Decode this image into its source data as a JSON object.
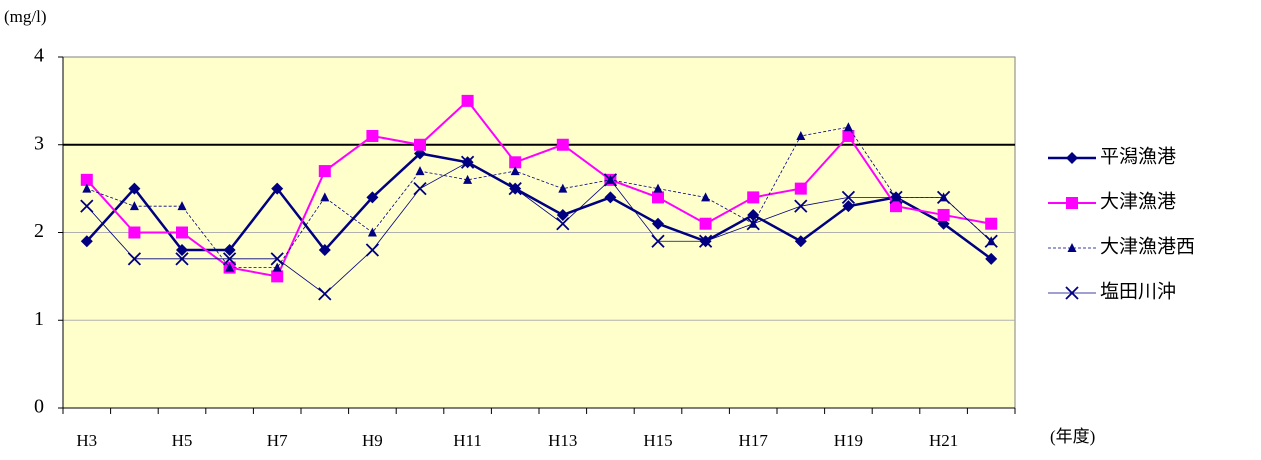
{
  "chart_data": {
    "type": "line",
    "y_label": "(mg/l)",
    "x_label": "(年度)",
    "categories": [
      "H3",
      null,
      "H5",
      null,
      "H7",
      null,
      "H9",
      null,
      "H11",
      null,
      "H13",
      null,
      "H15",
      null,
      "H17",
      null,
      "H19",
      null,
      "H21",
      null
    ],
    "ylim": [
      0,
      4
    ],
    "yticks": [
      0,
      1,
      2,
      3,
      4
    ],
    "grid": true,
    "reference_line": 3,
    "background": "#ffffcc",
    "legend": "right",
    "series": [
      {
        "name": "平潟漁港",
        "color": "#000080",
        "marker": "diamond",
        "line_width": 2.5,
        "dashed": false,
        "values": [
          1.9,
          2.5,
          1.8,
          1.8,
          2.5,
          1.8,
          2.4,
          2.9,
          2.8,
          2.5,
          2.2,
          2.4,
          2.1,
          1.9,
          2.2,
          1.9,
          2.3,
          2.4,
          2.1,
          1.7
        ]
      },
      {
        "name": "大津漁港",
        "color": "#ff00ff",
        "marker": "square",
        "line_width": 2,
        "dashed": false,
        "values": [
          2.6,
          2.0,
          2.0,
          1.6,
          1.5,
          2.7,
          3.1,
          3.0,
          3.5,
          2.8,
          3.0,
          2.6,
          2.4,
          2.1,
          2.4,
          2.5,
          3.1,
          2.3,
          2.2,
          2.1
        ]
      },
      {
        "name": "大津漁港西",
        "color": "#000080",
        "marker": "triangle",
        "line_width": 0.8,
        "dashed": true,
        "values": [
          2.5,
          2.3,
          2.3,
          1.6,
          1.6,
          2.4,
          2.0,
          2.7,
          2.6,
          2.7,
          2.5,
          2.6,
          2.5,
          2.4,
          2.1,
          3.1,
          3.2,
          2.4,
          2.4,
          1.9
        ]
      },
      {
        "name": "塩田川沖",
        "color": "#000080",
        "marker": "cross",
        "line_width": 0.8,
        "dashed": false,
        "values": [
          2.3,
          1.7,
          1.7,
          1.7,
          1.7,
          1.3,
          1.8,
          2.5,
          2.8,
          2.5,
          2.1,
          2.6,
          1.9,
          1.9,
          2.1,
          2.3,
          2.4,
          2.4,
          2.4,
          1.9
        ]
      }
    ]
  }
}
